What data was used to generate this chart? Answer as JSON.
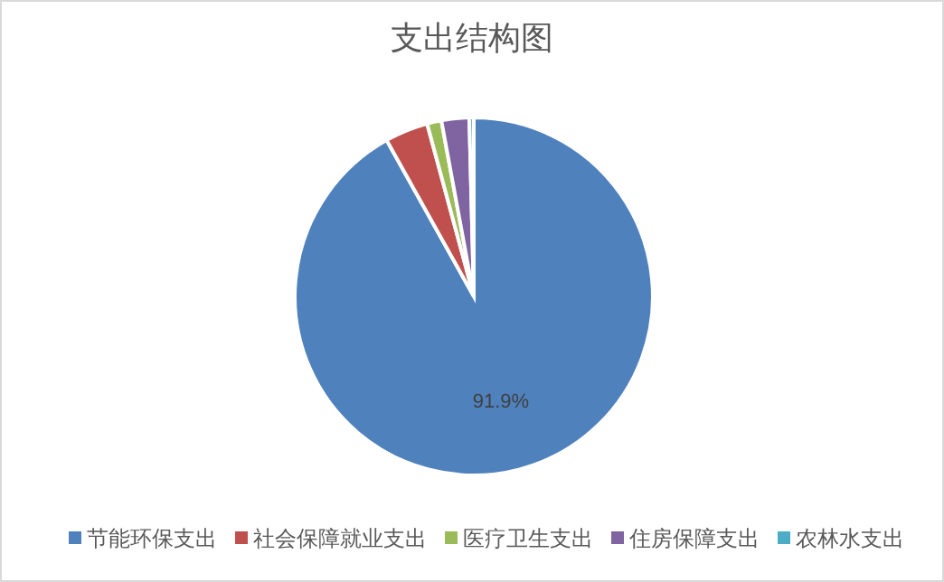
{
  "chart_data": {
    "type": "pie",
    "title": "支出结构图",
    "categories": [
      "节能环保支出",
      "社会保障就业支出",
      "医疗卫生支出",
      "住房保障支出",
      "农林水支出"
    ],
    "values": [
      91.9,
      3.9,
      1.3,
      2.5,
      0.4
    ],
    "colors": [
      "#4f81bd",
      "#c0504d",
      "#9bbb59",
      "#8064a2",
      "#4bacc6"
    ],
    "value_labels": [
      "91.9%",
      null,
      null,
      null,
      null
    ],
    "legend": "bottom"
  }
}
